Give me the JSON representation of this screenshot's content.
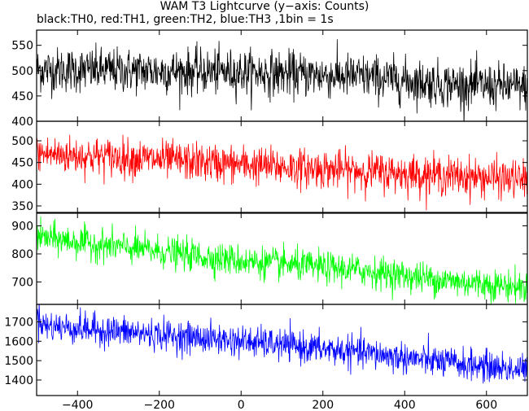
{
  "chart_data": {
    "type": "line",
    "title": "WAM T3 Lightcurve (y−axis: Counts)",
    "subtitle": "black:TH0, red:TH1, green:TH2, blue:TH3 ,1bin = 1s",
    "xlim": [
      -500,
      700
    ],
    "x_ticks": [
      -400,
      -200,
      0,
      200,
      400,
      600
    ],
    "x_tick_labels": [
      "−400",
      "−200",
      "0",
      "200",
      "400",
      "600"
    ],
    "bin_seconds": 1,
    "grid": false,
    "panels": [
      {
        "series_name": "TH0",
        "color": "#000000",
        "ylim": [
          400,
          580
        ],
        "y_ticks": [
          400,
          450,
          500,
          550
        ],
        "y_tick_labels": [
          "400",
          "450",
          "500",
          "550"
        ],
        "trend": [
          [
            -500,
            502
          ],
          [
            -300,
            500
          ],
          [
            0,
            497
          ],
          [
            300,
            488
          ],
          [
            500,
            473
          ],
          [
            700,
            467
          ]
        ],
        "noise_sigma": 22
      },
      {
        "series_name": "TH1",
        "color": "#ff0000",
        "ylim": [
          335,
          545
        ],
        "y_ticks": [
          350,
          400,
          450,
          500
        ],
        "y_tick_labels": [
          "350",
          "400",
          "450",
          "500"
        ],
        "trend": [
          [
            -500,
            470
          ],
          [
            -300,
            462
          ],
          [
            0,
            445
          ],
          [
            300,
            430
          ],
          [
            500,
            420
          ],
          [
            700,
            410
          ]
        ],
        "noise_sigma": 22
      },
      {
        "series_name": "TH2",
        "color": "#00ff00",
        "ylim": [
          620,
          945
        ],
        "y_ticks": [
          700,
          800,
          900
        ],
        "y_tick_labels": [
          "700",
          "800",
          "900"
        ],
        "trend": [
          [
            -500,
            860
          ],
          [
            -300,
            825
          ],
          [
            0,
            775
          ],
          [
            300,
            740
          ],
          [
            500,
            705
          ],
          [
            700,
            680
          ]
        ],
        "noise_sigma": 28
      },
      {
        "series_name": "TH3",
        "color": "#0000ff",
        "ylim": [
          1320,
          1790
        ],
        "y_ticks": [
          1400,
          1500,
          1600,
          1700
        ],
        "y_tick_labels": [
          "1400",
          "1500",
          "1600",
          "1700"
        ],
        "trend": [
          [
            -500,
            1740
          ],
          [
            -480,
            1680
          ],
          [
            -300,
            1650
          ],
          [
            0,
            1600
          ],
          [
            300,
            1540
          ],
          [
            500,
            1490
          ],
          [
            700,
            1450
          ]
        ],
        "noise_sigma": 40
      }
    ]
  }
}
